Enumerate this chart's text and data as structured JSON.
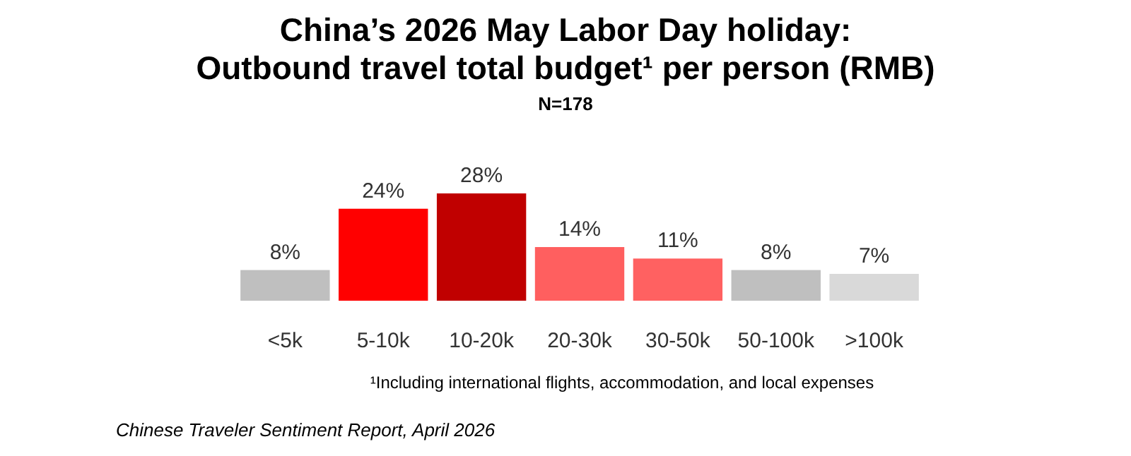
{
  "chart_data": {
    "type": "bar",
    "title": "China’s 2026 May Labor Day holiday:\nOutbound travel total budget¹ per person (RMB)",
    "subtitle": "N=178",
    "categories": [
      "<5k",
      "5-10k",
      "10-20k",
      "20-30k",
      "30-50k",
      "50-100k",
      ">100k"
    ],
    "values": [
      8,
      24,
      28,
      14,
      11,
      8,
      7
    ],
    "value_labels": [
      "8%",
      "24%",
      "28%",
      "14%",
      "11%",
      "8%",
      "7%"
    ],
    "colors": [
      "#bfbfbf",
      "#ff0000",
      "#c00000",
      "#ff5f5f",
      "#ff6161",
      "#bfbfbf",
      "#d9d9d9"
    ],
    "annotations": [
      "¹Including international flights, accommodation, and local expenses",
      "Chinese Traveler Sentiment Report, April 2026"
    ]
  }
}
